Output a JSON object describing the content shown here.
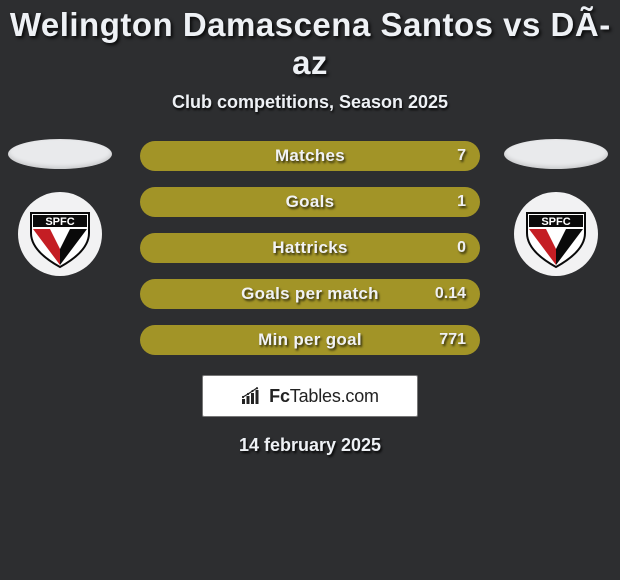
{
  "title": "Welington Damascena Santos vs DÃ­az",
  "subtitle": "Club competitions, Season 2025",
  "date": "14 february 2025",
  "colors": {
    "background": "#2d2e30",
    "bar": "#a29427",
    "text": "#eef1f5",
    "logo_bg": "#ffffff",
    "logo_border": "#777777"
  },
  "stats": [
    {
      "label": "Matches",
      "value": "7"
    },
    {
      "label": "Goals",
      "value": "1"
    },
    {
      "label": "Hattricks",
      "value": "0"
    },
    {
      "label": "Goals per match",
      "value": "0.14"
    },
    {
      "label": "Min per goal",
      "value": "771"
    }
  ],
  "brand": {
    "name": "FcTables.com"
  },
  "club": {
    "abbrev": "SPFC"
  }
}
